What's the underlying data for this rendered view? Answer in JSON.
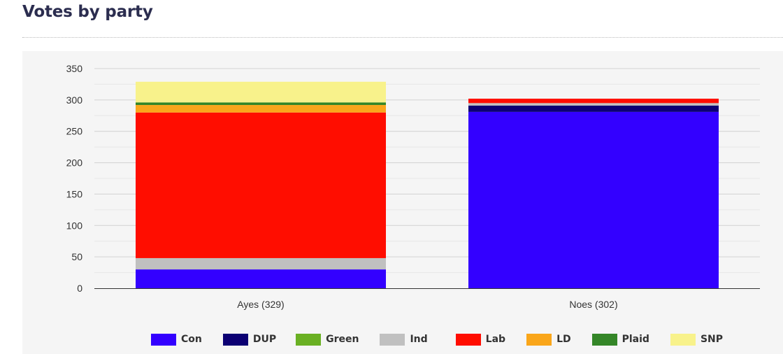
{
  "title": "Votes by party",
  "chart_data": {
    "type": "bar",
    "stacked": true,
    "categories": [
      "Ayes (329)",
      "Noes (302)"
    ],
    "ylim": [
      0,
      350
    ],
    "yticks": [
      0,
      50,
      100,
      150,
      200,
      250,
      300,
      350
    ],
    "grid": true,
    "legend_position": "bottom",
    "series": [
      {
        "name": "Con",
        "color": "#3300ff",
        "values": [
          30,
          281
        ]
      },
      {
        "name": "DUP",
        "color": "#0c0073",
        "values": [
          0,
          10
        ]
      },
      {
        "name": "Green",
        "color": "#6ab023",
        "values": [
          0,
          0
        ]
      },
      {
        "name": "Ind",
        "color": "#c0c0c0",
        "values": [
          18,
          4
        ]
      },
      {
        "name": "Lab",
        "color": "#ff0d00",
        "values": [
          232,
          7
        ]
      },
      {
        "name": "LD",
        "color": "#faa61a",
        "values": [
          12,
          0
        ]
      },
      {
        "name": "Plaid",
        "color": "#348628",
        "values": [
          4,
          0
        ]
      },
      {
        "name": "SNP",
        "color": "#f8f28b",
        "values": [
          33,
          0
        ]
      }
    ]
  }
}
